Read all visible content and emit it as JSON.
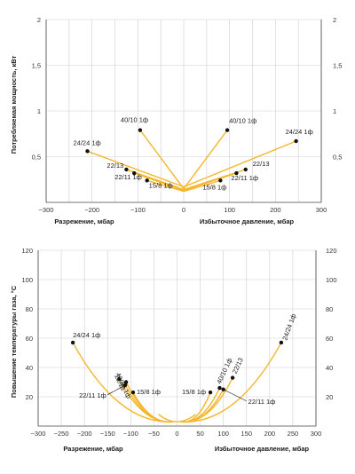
{
  "chart_data": [
    {
      "type": "line",
      "title": "",
      "ylabel": "Потребляемая мощность, кВт",
      "xlabel_left": "Разрежение, мбар",
      "xlabel_right": "Избыточное давление, мбар",
      "xlim": [
        -300,
        300
      ],
      "ylim": [
        0,
        2
      ],
      "xticks": [
        -300,
        -200,
        -100,
        0,
        100,
        200,
        300
      ],
      "yticks_left": [
        0.5,
        1,
        1.5,
        2
      ],
      "yticks_right": [
        0.5,
        1,
        1.5,
        2
      ],
      "xtick_labels": [
        "−300",
        "−200",
        "−100",
        "0",
        "100",
        "200",
        "300"
      ],
      "ytick_labels": [
        "0,5",
        "1",
        "1,5",
        "2"
      ],
      "grid": true,
      "line_color": "#f5b62a",
      "series": [
        {
          "name": "24/24 1ф",
          "side": "negative",
          "points": [
            [
              0,
              0.17
            ],
            [
              -210,
              0.56
            ]
          ]
        },
        {
          "name": "40/10 1ф",
          "side": "negative",
          "points": [
            [
              0,
              0.15
            ],
            [
              -95,
              0.79
            ]
          ]
        },
        {
          "name": "22/13",
          "side": "negative",
          "points": [
            [
              0,
              0.14
            ],
            [
              -125,
              0.36
            ]
          ]
        },
        {
          "name": "22/11 1ф",
          "side": "negative",
          "points": [
            [
              0,
              0.13
            ],
            [
              -108,
              0.32
            ]
          ]
        },
        {
          "name": "15/8 1ф",
          "side": "negative",
          "points": [
            [
              0,
              0.12
            ],
            [
              -80,
              0.24
            ]
          ]
        },
        {
          "name": "40/10 1ф",
          "side": "positive",
          "points": [
            [
              0,
              0.15
            ],
            [
              95,
              0.79
            ]
          ]
        },
        {
          "name": "24/24 1ф",
          "side": "positive",
          "points": [
            [
              0,
              0.17
            ],
            [
              245,
              0.67
            ]
          ]
        },
        {
          "name": "22/13",
          "side": "positive",
          "points": [
            [
              0,
              0.14
            ],
            [
              135,
              0.36
            ]
          ]
        },
        {
          "name": "22/11 1ф",
          "side": "positive",
          "points": [
            [
              0,
              0.13
            ],
            [
              115,
              0.32
            ]
          ]
        },
        {
          "name": "15/8 1ф",
          "side": "positive",
          "points": [
            [
              0,
              0.12
            ],
            [
              80,
              0.24
            ]
          ]
        }
      ]
    },
    {
      "type": "line",
      "title": "",
      "ylabel": "Повышение температуры газа, °C",
      "xlabel_left": "Разрежение, мбар",
      "xlabel_right": "Избыточное давление, мбар",
      "xlim": [
        -300,
        300
      ],
      "ylim": [
        0,
        120
      ],
      "xticks": [
        -300,
        -250,
        -200,
        -150,
        -100,
        -50,
        0,
        50,
        100,
        150,
        200,
        250,
        300
      ],
      "xtick_labels": [
        "−300",
        "−250",
        "−200",
        "−150",
        "−100",
        "−50",
        "0",
        "50",
        "100",
        "150",
        "200",
        "250",
        "300"
      ],
      "yticks_left": [
        20,
        40,
        60,
        80,
        100,
        120
      ],
      "yticks_right": [
        20,
        40,
        60,
        80,
        100,
        120
      ],
      "grid": true,
      "line_color": "#f5b62a",
      "series": [
        {
          "name": "24/24 1ф",
          "side": "negative",
          "points": [
            [
              -225,
              57
            ]
          ]
        },
        {
          "name": "40/10 1ф",
          "side": "negative",
          "points": [
            [
              -125,
              32
            ]
          ]
        },
        {
          "name": "22/13",
          "side": "negative",
          "points": [
            [
              -110,
              30
            ]
          ]
        },
        {
          "name": "22/11 1ф",
          "side": "negative",
          "points": [
            [
              -112,
              28
            ]
          ]
        },
        {
          "name": "15/8 1ф",
          "side": "negative",
          "points": [
            [
              -95,
              23
            ]
          ]
        },
        {
          "name": "24/24 1ф",
          "side": "positive",
          "points": [
            [
              225,
              57
            ]
          ]
        },
        {
          "name": "40/10 1ф",
          "side": "positive",
          "points": [
            [
              92,
              26
            ]
          ]
        },
        {
          "name": "22/13",
          "side": "positive",
          "points": [
            [
              120,
              33
            ]
          ]
        },
        {
          "name": "22/11 1ф",
          "side": "positive",
          "points": [
            [
              100,
              25
            ]
          ]
        },
        {
          "name": "15/8 1ф",
          "side": "positive",
          "points": [
            [
              72,
              23
            ]
          ]
        }
      ]
    }
  ]
}
